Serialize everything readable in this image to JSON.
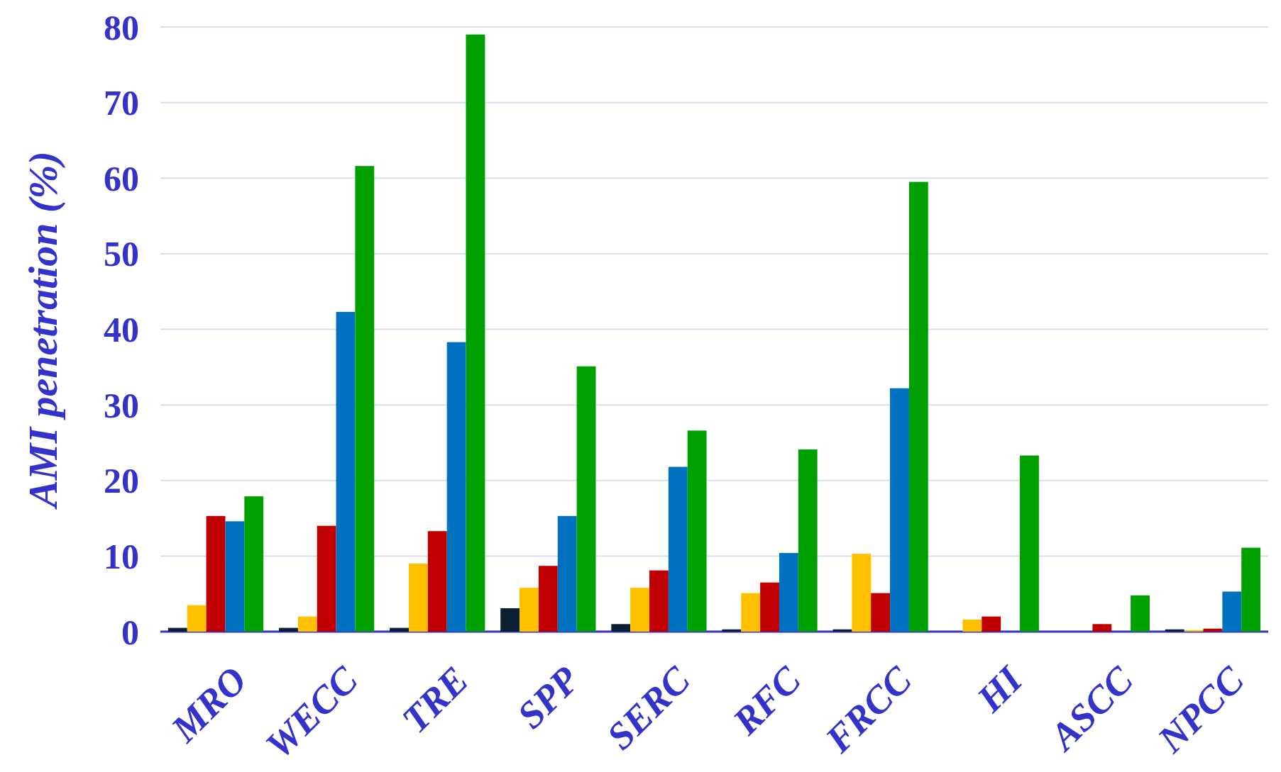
{
  "chart_data": {
    "type": "bar",
    "ylabel": "AMI penetration (%)",
    "categories": [
      "MRO",
      "WECC",
      "TRE",
      "SPP",
      "SERC",
      "RFC",
      "FRCC",
      "HI",
      "ASCC",
      "NPCC"
    ],
    "series": [
      {
        "color": "#0d1f33",
        "values": [
          0.5,
          0.5,
          0.5,
          3.1,
          1.0,
          0.3,
          0.3,
          0,
          0,
          0.3
        ]
      },
      {
        "color": "#ffc000",
        "values": [
          3.5,
          2.0,
          9.0,
          5.8,
          5.8,
          5.1,
          10.3,
          1.6,
          0,
          0.2
        ]
      },
      {
        "color": "#c00000",
        "values": [
          15.3,
          14.0,
          13.3,
          8.7,
          8.1,
          6.5,
          5.1,
          2.0,
          1.0,
          0.4
        ]
      },
      {
        "color": "#0070c0",
        "values": [
          14.6,
          42.3,
          38.3,
          15.3,
          21.8,
          10.4,
          32.2,
          0,
          0,
          5.3
        ]
      },
      {
        "color": "#00a000",
        "values": [
          17.9,
          61.6,
          79.0,
          35.1,
          26.6,
          24.1,
          59.5,
          23.3,
          4.8,
          11.1
        ]
      }
    ],
    "ylim": [
      0,
      80
    ],
    "yticks": [
      0,
      10,
      20,
      30,
      40,
      50,
      60,
      70,
      80
    ],
    "grid": "y"
  }
}
